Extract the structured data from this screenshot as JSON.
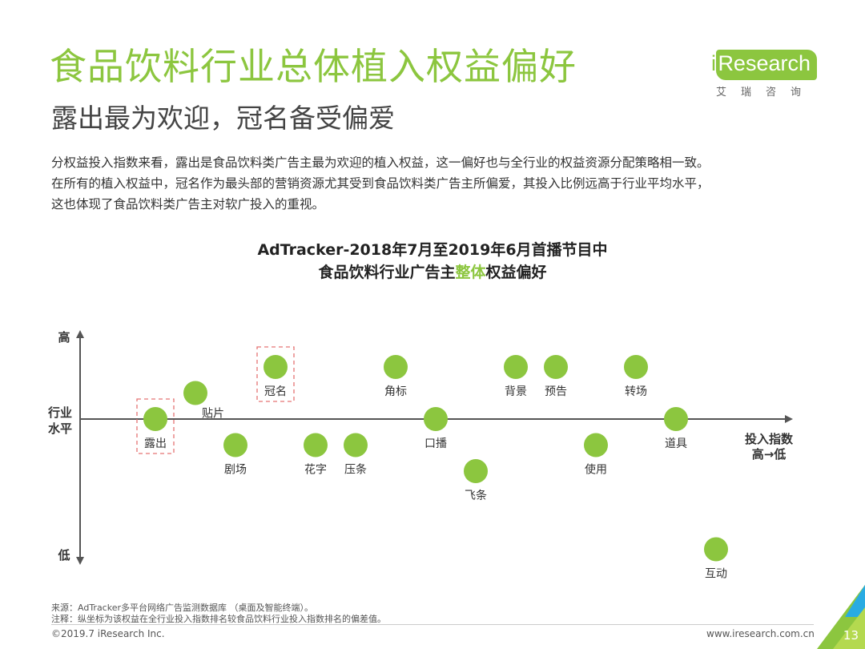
{
  "header": {
    "title": "食品饮料行业总体植入权益偏好",
    "subtitle": "露出最为欢迎，冠名备受偏爱",
    "description": [
      "分权益投入指数来看，露出是食品饮料类广告主最为欢迎的植入权益，这一偏好也与全行业的权益资源分配策略相一致。",
      "在所有的植入权益中，冠名作为最头部的营销资源尤其受到食品饮料类广告主所偏爱，其投入比例远高于行业平均水平，",
      "这也体现了食品饮料类广告主对软广投入的重视。"
    ]
  },
  "logo": {
    "i": "i",
    "name": "Research",
    "cn": "艾瑞咨询"
  },
  "chart_title": {
    "line1": "AdTracker-2018年7月至2019年6月首播节目中",
    "line2_pre": "食品饮料行业广告主",
    "line2_highlight": "整体",
    "line2_post": "权益偏好"
  },
  "chart_data": {
    "type": "scatter",
    "title": "AdTracker-2018年7月至2019年6月首播节目中 食品饮料行业广告主整体权益偏好",
    "y_axis": {
      "top_label": "高",
      "bottom_label": "低",
      "mid_label": [
        "行业",
        "水平"
      ]
    },
    "x_axis": {
      "label": [
        "投入指数",
        "高→低"
      ]
    },
    "point_color": "#8cc63f",
    "highlight_box_color": "#e57373",
    "points": [
      {
        "label": "露出",
        "rank": 1,
        "y": 0,
        "label_pos": "below",
        "highlight": true
      },
      {
        "label": "贴片",
        "rank": 2,
        "y": 1,
        "label_pos": "below-right"
      },
      {
        "label": "剧场",
        "rank": 3,
        "y": -1,
        "label_pos": "below"
      },
      {
        "label": "冠名",
        "rank": 4,
        "y": 2,
        "label_pos": "below",
        "highlight": true
      },
      {
        "label": "花字",
        "rank": 5,
        "y": -1,
        "label_pos": "below"
      },
      {
        "label": "压条",
        "rank": 6,
        "y": -1,
        "label_pos": "below"
      },
      {
        "label": "角标",
        "rank": 7,
        "y": 2,
        "label_pos": "below"
      },
      {
        "label": "口播",
        "rank": 8,
        "y": 0,
        "label_pos": "below"
      },
      {
        "label": "飞条",
        "rank": 9,
        "y": -2,
        "label_pos": "below"
      },
      {
        "label": "背景",
        "rank": 10,
        "y": 2,
        "label_pos": "below"
      },
      {
        "label": "预告",
        "rank": 11,
        "y": 2,
        "label_pos": "below"
      },
      {
        "label": "使用",
        "rank": 12,
        "y": -1,
        "label_pos": "below"
      },
      {
        "label": "转场",
        "rank": 13,
        "y": 2,
        "label_pos": "below"
      },
      {
        "label": "道具",
        "rank": 14,
        "y": 0,
        "label_pos": "below"
      },
      {
        "label": "互动",
        "rank": 15,
        "y": -5,
        "label_pos": "below"
      }
    ]
  },
  "footer": {
    "source": "来源：AdTracker多平台网络广告监测数据库 （桌面及智能终端）。",
    "note": "注释：纵坐标为该权益在全行业投入指数排名较食品饮料行业投入指数排名的偏差值。",
    "copyright": "©2019.7 iResearch Inc.",
    "website": "www.iresearch.com.cn",
    "page": "13"
  }
}
